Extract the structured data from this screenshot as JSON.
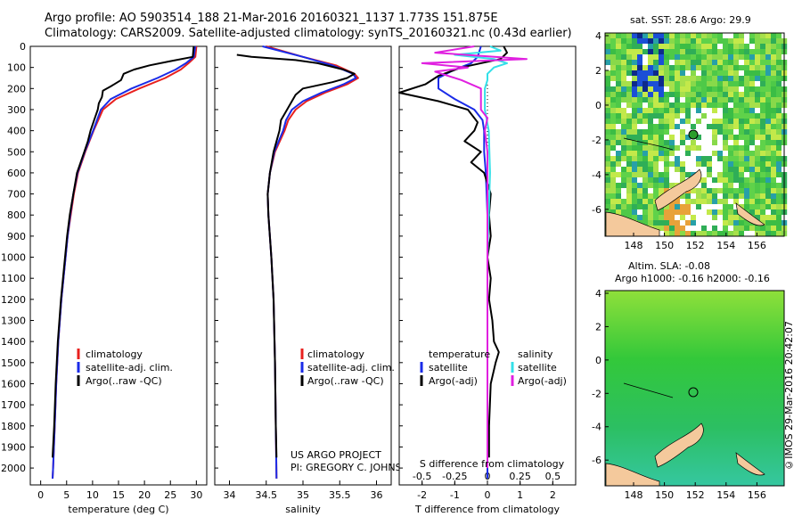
{
  "header": {
    "line1": "Argo profile: AO 5903514_188 21-Mar-2016 20160321_1137 1.773S 151.875E",
    "line2": "Climatology: CARS2009. Satellite-adjusted climatology: synTS_20160321.nc (0.43d earlier)"
  },
  "colors": {
    "clim": "#e8201e",
    "sat": "#1a2be8",
    "argo": "#000000",
    "sal_sat": "#33e0e8",
    "sal_argo": "#e020e0"
  },
  "chart_data": [
    {
      "type": "line",
      "name": "temperature",
      "xlabel": "temperature (deg C)",
      "ylabel": "",
      "xlim": [
        -2,
        32
      ],
      "ylim": [
        2080,
        0
      ],
      "xticks": [
        0,
        5,
        10,
        15,
        20,
        25,
        30
      ],
      "yticks": [
        0,
        100,
        200,
        300,
        400,
        500,
        600,
        700,
        800,
        900,
        1000,
        1100,
        1200,
        1300,
        1400,
        1500,
        1600,
        1700,
        1800,
        1900,
        2000
      ],
      "legend": [
        "climatology",
        "satellite-adj. clim.",
        "Argo(..raw -QC)"
      ],
      "series": [
        {
          "name": "climatology",
          "depth": [
            0,
            50,
            80,
            110,
            150,
            200,
            250,
            300,
            400,
            500,
            600,
            700,
            800,
            900,
            1000,
            1200,
            1400,
            1600,
            1800,
            2000,
            2050
          ],
          "values": [
            30,
            29.8,
            28.5,
            27,
            24,
            19,
            14.5,
            12,
            10.2,
            8.6,
            7.2,
            6.4,
            5.8,
            5.2,
            4.8,
            4.0,
            3.4,
            3.0,
            2.7,
            2.4,
            2.3
          ]
        },
        {
          "name": "satellite-adj. clim.",
          "depth": [
            0,
            50,
            80,
            110,
            150,
            200,
            250,
            300,
            400,
            500,
            600,
            700,
            800,
            900,
            1000,
            1200,
            1400,
            1600,
            1800,
            2000,
            2050
          ],
          "values": [
            29.8,
            29.5,
            28,
            26,
            22.5,
            17.5,
            13.5,
            11.6,
            10.1,
            8.5,
            7.1,
            6.3,
            5.7,
            5.2,
            4.8,
            4.0,
            3.4,
            3.0,
            2.7,
            2.4,
            2.3
          ]
        },
        {
          "name": "Argo(..raw -QC)",
          "depth": [
            0,
            50,
            70,
            90,
            110,
            130,
            160,
            190,
            210,
            240,
            270,
            300,
            350,
            400,
            450,
            500,
            600,
            700,
            800,
            900,
            1000,
            1200,
            1400,
            1600,
            1800,
            1950
          ],
          "values": [
            29.5,
            29.3,
            25,
            21,
            18,
            16,
            15.5,
            13.5,
            12,
            11.8,
            11.2,
            11,
            10.3,
            9.6,
            9.1,
            8.4,
            7.0,
            6.3,
            5.6,
            5.1,
            4.7,
            3.9,
            3.3,
            2.9,
            2.6,
            2.3
          ]
        }
      ]
    },
    {
      "type": "line",
      "name": "salinity",
      "xlabel": "salinity",
      "xlim": [
        33.8,
        36.2
      ],
      "ylim": [
        2080,
        0
      ],
      "xticks": [
        34,
        34.5,
        35,
        35.5,
        36
      ],
      "xticklabels": [
        "34",
        "34.5",
        "35",
        "35.5",
        "36"
      ],
      "legend": [
        "climatology",
        "satellite-adj. clim.",
        "Argo(..raw -QC)"
      ],
      "series": [
        {
          "name": "climatology",
          "depth": [
            0,
            50,
            90,
            130,
            150,
            180,
            220,
            260,
            300,
            350,
            400,
            500,
            600,
            700,
            800,
            1000,
            1200,
            1500,
            1800,
            2050
          ],
          "values": [
            34.5,
            35.0,
            35.45,
            35.7,
            35.75,
            35.6,
            35.3,
            35.05,
            34.9,
            34.8,
            34.75,
            34.62,
            34.55,
            34.52,
            34.53,
            34.57,
            34.6,
            34.62,
            34.63,
            34.64
          ]
        },
        {
          "name": "satellite-adj. clim.",
          "depth": [
            0,
            50,
            90,
            130,
            150,
            180,
            220,
            260,
            300,
            350,
            400,
            500,
            600,
            700,
            800,
            1000,
            1200,
            1500,
            1800,
            2050
          ],
          "values": [
            34.45,
            35.0,
            35.4,
            35.68,
            35.72,
            35.55,
            35.25,
            35.0,
            34.85,
            34.77,
            34.73,
            34.61,
            34.55,
            34.52,
            34.53,
            34.57,
            34.6,
            34.62,
            34.63,
            34.64
          ]
        },
        {
          "name": "Argo(..raw -QC)",
          "depth": [
            40,
            50,
            65,
            80,
            110,
            130,
            150,
            170,
            200,
            230,
            260,
            290,
            320,
            350,
            400,
            500,
            600,
            700,
            800,
            1000,
            1200,
            1500,
            1800,
            1950
          ],
          "values": [
            34.1,
            34.3,
            34.9,
            35.2,
            35.55,
            35.7,
            35.6,
            35.4,
            35.0,
            34.9,
            34.85,
            34.8,
            34.75,
            34.7,
            34.68,
            34.6,
            34.55,
            34.52,
            34.53,
            34.57,
            34.6,
            34.62,
            34.63,
            34.64
          ]
        }
      ]
    },
    {
      "type": "line",
      "name": "differences",
      "xlabel": "T difference from climatology",
      "xlabel2": "S difference from climatology",
      "xlim": [
        -2.7,
        2.7
      ],
      "ylim": [
        2080,
        0
      ],
      "xticks": [
        -2,
        -1,
        0,
        1,
        2
      ],
      "sticks": [
        -0.5,
        -0.25,
        0,
        0.25,
        0.5
      ],
      "sticklabels": [
        "-0.5",
        "-0.25",
        "0",
        "0.25",
        "0.5"
      ],
      "legend_titles": [
        "temperature",
        "salinity"
      ],
      "legend": [
        "satellite",
        "Argo(-adj)",
        "satellite",
        "Argo(-adj)"
      ],
      "series": [
        {
          "name": "T satellite",
          "depth": [
            0,
            50,
            80,
            110,
            150,
            200,
            250,
            300,
            350,
            400,
            500,
            600,
            800,
            1000,
            1500,
            2050
          ],
          "values": [
            -0.2,
            -0.3,
            -0.5,
            -1.0,
            -1.5,
            -1.5,
            -1.0,
            -0.4,
            -0.15,
            -0.1,
            -0.1,
            -0.05,
            0,
            0,
            0,
            0
          ]
        },
        {
          "name": "T Argo(-adj)",
          "depth": [
            0,
            30,
            60,
            100,
            140,
            180,
            220,
            260,
            300,
            360,
            400,
            450,
            500,
            550,
            600,
            700,
            800,
            900,
            1000,
            1100,
            1200,
            1300,
            1400,
            1450,
            1500,
            1600,
            1800,
            1950
          ],
          "values": [
            0.5,
            0.6,
            0.4,
            -0.8,
            -1.5,
            -1.9,
            -2.7,
            -1.5,
            -0.6,
            -0.3,
            -0.4,
            -0.7,
            -0.2,
            -0.5,
            -0.1,
            0.1,
            0.05,
            0.1,
            0.0,
            0.1,
            0.05,
            0.15,
            0.2,
            0.35,
            0.25,
            0.1,
            0.05,
            0.05
          ]
        },
        {
          "name": "S satellite",
          "depth": [
            0,
            20,
            40,
            60,
            80,
            100,
            130,
            160,
            200,
            300,
            400,
            600,
            800,
            1000,
            1400,
            2000
          ],
          "values": [
            0.02,
            0.1,
            -0.25,
            0.05,
            0.15,
            0.05,
            0,
            0,
            -0.02,
            -0.02,
            0.01,
            0.02,
            0.01,
            0.0,
            0.0,
            0.0
          ]
        },
        {
          "name": "S Argo(-adj)",
          "depth": [
            0,
            30,
            60,
            80,
            100,
            120,
            160,
            200,
            260,
            300,
            340,
            400,
            500,
            700,
            1000,
            1500,
            2000
          ],
          "values": [
            -0.1,
            -0.4,
            0.3,
            -0.5,
            -0.15,
            -0.4,
            -0.2,
            -0.05,
            -0.05,
            -0.05,
            0.0,
            -0.02,
            0.0,
            0.0,
            0.0,
            0.0,
            0.0
          ]
        }
      ]
    }
  ],
  "maps": {
    "top_title": "sat. SST: 28.6 Argo: 29.9",
    "bottom_title1": "Altim. SLA: -0.08",
    "bottom_title2": "Argo h1000: -0.16 h2000: -0.16",
    "lon_ticks": [
      "148",
      "150",
      "152",
      "154",
      "156"
    ],
    "lat_ticks": [
      "4",
      "2",
      "0",
      "-2",
      "-4",
      "-6"
    ]
  },
  "credits": {
    "project": "US ARGO PROJECT",
    "pi": "PI: GREGORY C. JOHNSON",
    "stamp": "©IMOS 29-Mar-2016 20:42:07"
  }
}
